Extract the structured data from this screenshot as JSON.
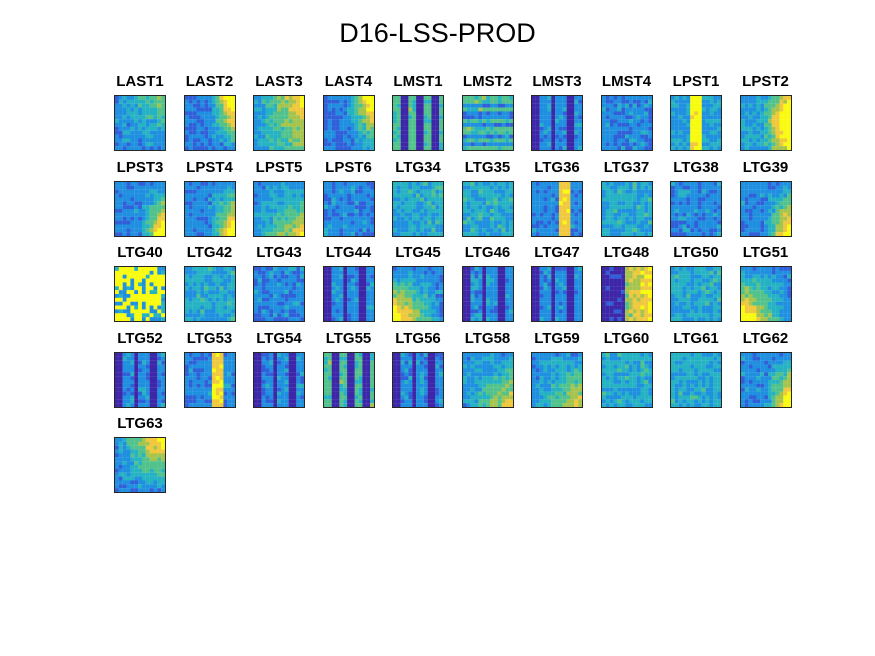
{
  "chart_data": {
    "type": "heatmap",
    "title": "D16-LSS-PROD",
    "layout": {
      "columns": 10,
      "rows": 5
    },
    "colormap": [
      "#3e26a8",
      "#2f5fd9",
      "#1f8fe0",
      "#25b2c3",
      "#52c28d",
      "#a6c44d",
      "#f0c83d",
      "#f9fb0e"
    ],
    "panels": [
      {
        "name": "LAST1",
        "pattern": "low-top-right-weak"
      },
      {
        "name": "LAST2",
        "pattern": "high-top-right"
      },
      {
        "name": "LAST3",
        "pattern": "mid-right"
      },
      {
        "name": "LAST4",
        "pattern": "high-top-right"
      },
      {
        "name": "LMST1",
        "pattern": "dark-stripes"
      },
      {
        "name": "LMST2",
        "pattern": "horizontal-bands"
      },
      {
        "name": "LMST3",
        "pattern": "dark-vertical"
      },
      {
        "name": "LMST4",
        "pattern": "noise-low"
      },
      {
        "name": "LPST1",
        "pattern": "vertical-yellow-band"
      },
      {
        "name": "LPST2",
        "pattern": "high-right"
      },
      {
        "name": "LPST3",
        "pattern": "bottom-right-warm"
      },
      {
        "name": "LPST4",
        "pattern": "bottom-right-warm"
      },
      {
        "name": "LPST5",
        "pattern": "bottom-right-mild"
      },
      {
        "name": "LPST6",
        "pattern": "noise-low"
      },
      {
        "name": "LTG34",
        "pattern": "noise-mid"
      },
      {
        "name": "LTG35",
        "pattern": "noise-mid"
      },
      {
        "name": "LTG36",
        "pattern": "vertical-warm"
      },
      {
        "name": "LTG37",
        "pattern": "noise-mid"
      },
      {
        "name": "LTG38",
        "pattern": "noise-low"
      },
      {
        "name": "LTG39",
        "pattern": "bottom-right-warm"
      },
      {
        "name": "LTG40",
        "pattern": "yellow-blotches"
      },
      {
        "name": "LTG42",
        "pattern": "noise-mid"
      },
      {
        "name": "LTG43",
        "pattern": "noise-low"
      },
      {
        "name": "LTG44",
        "pattern": "dark-vertical"
      },
      {
        "name": "LTG45",
        "pattern": "bottom-left-warm"
      },
      {
        "name": "LTG46",
        "pattern": "dark-vertical"
      },
      {
        "name": "LTG47",
        "pattern": "dark-vertical"
      },
      {
        "name": "LTG48",
        "pattern": "right-warm-dark-left"
      },
      {
        "name": "LTG50",
        "pattern": "noise-mid"
      },
      {
        "name": "LTG51",
        "pattern": "bottom-left-warm"
      },
      {
        "name": "LTG52",
        "pattern": "dark-vertical"
      },
      {
        "name": "LTG53",
        "pattern": "vertical-warm"
      },
      {
        "name": "LTG54",
        "pattern": "dark-vertical"
      },
      {
        "name": "LTG55",
        "pattern": "dark-stripes"
      },
      {
        "name": "LTG56",
        "pattern": "dark-vertical"
      },
      {
        "name": "LTG58",
        "pattern": "bottom-right-mild"
      },
      {
        "name": "LTG59",
        "pattern": "bottom-right-mild"
      },
      {
        "name": "LTG60",
        "pattern": "noise-mid"
      },
      {
        "name": "LTG61",
        "pattern": "noise-mid"
      },
      {
        "name": "LTG62",
        "pattern": "bottom-right-warm"
      },
      {
        "name": "LTG63",
        "pattern": "top-right-warm"
      }
    ]
  }
}
